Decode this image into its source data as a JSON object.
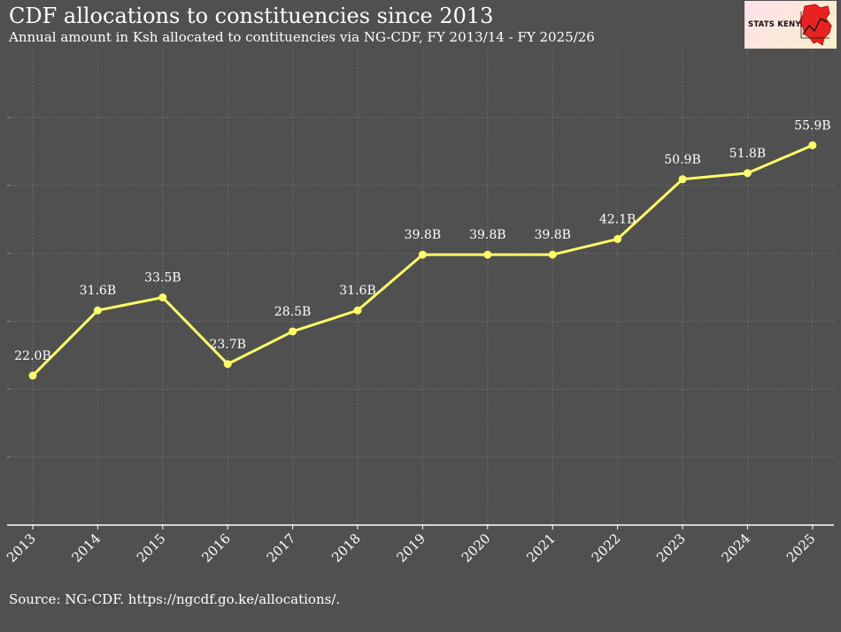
{
  "title": "CDF allocations to constituencies since 2013",
  "subtitle": "Annual amount in Ksh allocated to contituencies via NG-CDF, FY 2013/14 - FY 2025/26",
  "source": "Source: NG-CDF. https://ngcdf.go.ke/allocations/.",
  "logo": {
    "text": "STATS KENYA",
    "icon": "kenya-map-trend-icon"
  },
  "colors": {
    "background": "#505050",
    "line": "#ffff66",
    "grid": "#6e6e6e",
    "text": "#ffffff"
  },
  "chart_data": {
    "type": "line",
    "title": "CDF allocations to constituencies since 2013",
    "xlabel": "",
    "ylabel": "",
    "categories": [
      "2013",
      "2014",
      "2015",
      "2016",
      "2017",
      "2018",
      "2019",
      "2020",
      "2021",
      "2022",
      "2023",
      "2024",
      "2025"
    ],
    "values": [
      22.0,
      31.6,
      33.5,
      23.7,
      28.5,
      31.6,
      39.8,
      39.8,
      39.8,
      42.1,
      50.9,
      51.8,
      55.9
    ],
    "labels": [
      "22.0B",
      "31.6B",
      "33.5B",
      "23.7B",
      "28.5B",
      "31.6B",
      "39.8B",
      "39.8B",
      "39.8B",
      "42.1B",
      "50.9B",
      "51.8B",
      "55.9B"
    ],
    "ylim": [
      0,
      70
    ],
    "grid": true,
    "legend": "none"
  }
}
